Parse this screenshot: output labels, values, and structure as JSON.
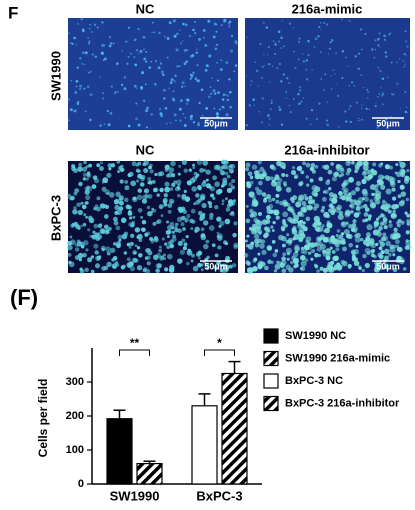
{
  "panel_label": "F",
  "image_panels": {
    "columns_top": [
      "NC",
      "216a-mimic"
    ],
    "columns_bottom": [
      "NC",
      "216a-inhibitor"
    ],
    "rows": [
      "SW1990",
      "BxPC-3"
    ],
    "scale_bars": [
      "50μm",
      "50μm",
      "50μm",
      "50μm"
    ]
  },
  "chart_data": {
    "type": "bar",
    "panel_label": "(F)",
    "y_label": "Cells per field",
    "categories": [
      "SW1990",
      "BxPC-3"
    ],
    "series": [
      {
        "name": "SW1990 NC",
        "color": "#000000",
        "pattern": "solid",
        "values": [
          192,
          null
        ],
        "errors": [
          25,
          null
        ]
      },
      {
        "name": "SW1990 216a-mimic",
        "color": "#000000",
        "pattern": "hatch",
        "values": [
          60,
          null
        ],
        "errors": [
          7,
          null
        ]
      },
      {
        "name": "BxPC-3 NC",
        "color": "#ffffff",
        "pattern": "solid",
        "values": [
          null,
          230
        ],
        "errors": [
          null,
          35
        ]
      },
      {
        "name": "BxPC-3 216a-inhibitor",
        "color": "#000000",
        "pattern": "hatch",
        "values": [
          null,
          325
        ],
        "errors": [
          null,
          35
        ]
      }
    ],
    "annotations": [
      "**",
      "*"
    ],
    "ylim": [
      0,
      400
    ],
    "yticks": [
      0,
      100,
      200,
      300
    ]
  }
}
